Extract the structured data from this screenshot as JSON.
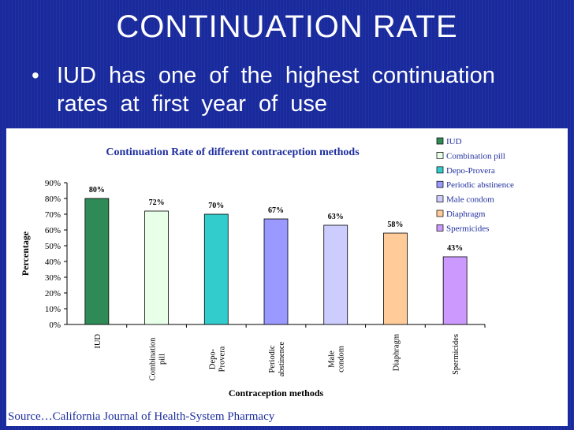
{
  "slide": {
    "title": "CONTINUATION RATE",
    "bullet": "IUD has one of the highest continuation rates at first year of use",
    "source": "Source…California Journal of Health-System Pharmacy"
  },
  "chart_data": {
    "type": "bar",
    "title": "Continuation Rate of different contraception methods",
    "xlabel": "Contraception methods",
    "ylabel": "Percentage",
    "ylim": [
      0,
      90
    ],
    "yticks": [
      "0%",
      "10%",
      "20%",
      "30%",
      "40%",
      "50%",
      "60%",
      "70%",
      "80%",
      "90%"
    ],
    "legend_position": "top-right",
    "categories": [
      {
        "label": [
          "IUD"
        ],
        "legend": "IUD"
      },
      {
        "label": [
          "Combination",
          "pill"
        ],
        "legend": "Combination pill"
      },
      {
        "label": [
          "Depo-",
          "Provera"
        ],
        "legend": "Depo-Provera"
      },
      {
        "label": [
          "Periodic",
          "abstinence"
        ],
        "legend": "Periodic abstinence"
      },
      {
        "label": [
          "Male",
          "condom"
        ],
        "legend": "Male condom"
      },
      {
        "label": [
          "Diaphragm"
        ],
        "legend": "Diaphragm"
      },
      {
        "label": [
          "Spermicides"
        ],
        "legend": "Spermicides"
      }
    ],
    "values": [
      80,
      72,
      70,
      67,
      63,
      58,
      43
    ],
    "data_labels": [
      "80%",
      "72%",
      "70%",
      "67%",
      "63%",
      "58%",
      "43%"
    ],
    "colors": [
      "#2e8b57",
      "#e8ffe8",
      "#33cccc",
      "#9999ff",
      "#ccccff",
      "#ffcc99",
      "#cc99ff"
    ]
  }
}
